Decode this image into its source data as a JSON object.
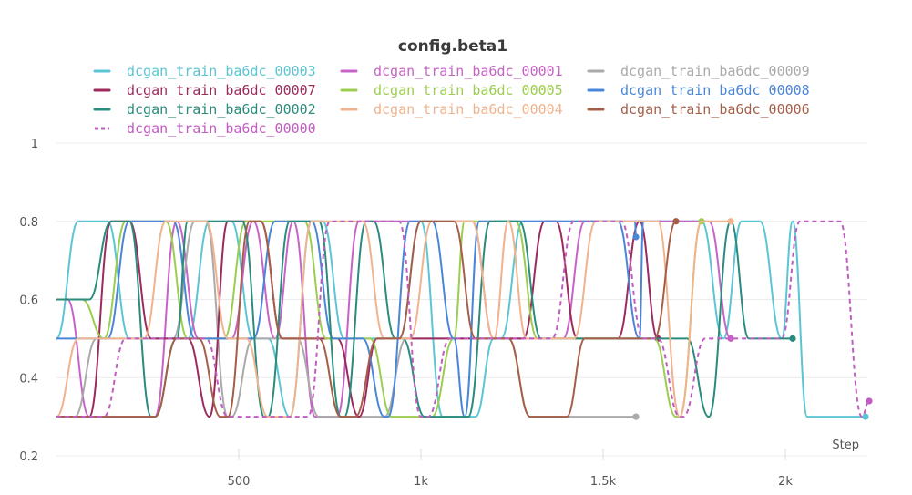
{
  "chart_data": {
    "type": "line",
    "title": "config.beta1",
    "xlabel": "Step",
    "ylabel": "",
    "xlim": [
      0,
      2230
    ],
    "ylim": [
      0.2,
      1.0
    ],
    "grid": true,
    "legend_position": "top",
    "x_ticks": [
      {
        "value": 500,
        "label": "500"
      },
      {
        "value": 1000,
        "label": "1k"
      },
      {
        "value": 1500,
        "label": "1.5k"
      },
      {
        "value": 2000,
        "label": "2k"
      }
    ],
    "y_ticks": [
      {
        "value": 0.2,
        "label": "0.2"
      },
      {
        "value": 0.4,
        "label": "0.4"
      },
      {
        "value": 0.6,
        "label": "0.6"
      },
      {
        "value": 0.8,
        "label": "0.8"
      },
      {
        "value": 1.0,
        "label": "1"
      }
    ],
    "series": [
      {
        "name": "dcgan_train_ba6dc_00003",
        "color": "#5bc5d4",
        "dashed": false,
        "steps": [
          [
            0,
            0.5
          ],
          [
            60,
            0.8
          ],
          [
            200,
            0.5
          ],
          [
            420,
            0.8
          ],
          [
            540,
            0.5
          ],
          [
            640,
            0.3
          ],
          [
            700,
            0.8
          ],
          [
            790,
            0.5
          ],
          [
            1000,
            0.8
          ],
          [
            1060,
            0.3
          ],
          [
            1150,
            0.3
          ],
          [
            1200,
            0.5
          ],
          [
            1280,
            0.8
          ],
          [
            1830,
            0.5
          ],
          [
            1880,
            0.8
          ],
          [
            1990,
            0.5
          ],
          [
            2020,
            0.8
          ],
          [
            2060,
            0.3
          ],
          [
            2220,
            0.3
          ]
        ]
      },
      {
        "name": "dcgan_train_ba6dc_00001",
        "color": "#c763c7",
        "dashed": false,
        "steps": [
          [
            0,
            0.6
          ],
          [
            90,
            0.3
          ],
          [
            330,
            0.8
          ],
          [
            390,
            0.5
          ],
          [
            540,
            0.8
          ],
          [
            600,
            0.5
          ],
          [
            650,
            0.8
          ],
          [
            710,
            0.3
          ],
          [
            830,
            0.8
          ],
          [
            1200,
            0.5
          ],
          [
            1450,
            0.8
          ],
          [
            1850,
            0.5
          ]
        ]
      },
      {
        "name": "dcgan_train_ba6dc_00009",
        "color": "#aaaaaa",
        "dashed": false,
        "steps": [
          [
            0,
            0.3
          ],
          [
            110,
            0.5
          ],
          [
            380,
            0.8
          ],
          [
            470,
            0.3
          ],
          [
            540,
            0.5
          ],
          [
            720,
            0.3
          ],
          [
            960,
            0.5
          ],
          [
            1300,
            0.3
          ],
          [
            1590,
            0.3
          ]
        ]
      },
      {
        "name": "dcgan_train_ba6dc_00007",
        "color": "#9c2a5c",
        "dashed": false,
        "steps": [
          [
            0,
            0.3
          ],
          [
            150,
            0.8
          ],
          [
            260,
            0.5
          ],
          [
            420,
            0.3
          ],
          [
            470,
            0.8
          ],
          [
            620,
            0.5
          ],
          [
            830,
            0.3
          ],
          [
            880,
            0.5
          ],
          [
            1340,
            0.8
          ],
          [
            1430,
            0.5
          ],
          [
            1600,
            0.8
          ],
          [
            1650,
            0.5
          ]
        ]
      },
      {
        "name": "dcgan_train_ba6dc_00005",
        "color": "#9ccd4e",
        "dashed": false,
        "steps": [
          [
            0,
            0.6
          ],
          [
            130,
            0.5
          ],
          [
            190,
            0.8
          ],
          [
            360,
            0.5
          ],
          [
            520,
            0.8
          ],
          [
            740,
            0.5
          ],
          [
            920,
            0.3
          ],
          [
            1090,
            0.5
          ],
          [
            1120,
            0.8
          ],
          [
            1320,
            0.5
          ],
          [
            1700,
            0.3
          ],
          [
            1770,
            0.8
          ]
        ]
      },
      {
        "name": "dcgan_train_ba6dc_00008",
        "color": "#4a86d8",
        "dashed": false,
        "steps": [
          [
            0,
            0.5
          ],
          [
            200,
            0.8
          ],
          [
            380,
            0.5
          ],
          [
            600,
            0.8
          ],
          [
            760,
            0.5
          ],
          [
            900,
            0.3
          ],
          [
            970,
            0.8
          ],
          [
            1090,
            0.5
          ],
          [
            1120,
            0.3
          ],
          [
            1160,
            0.8
          ],
          [
            1600,
            0.5
          ],
          [
            1610,
            0.8
          ],
          [
            1590,
            0.76
          ]
        ]
      },
      {
        "name": "dcgan_train_ba6dc_00002",
        "color": "#2a8c7c",
        "dashed": false,
        "steps": [
          [
            0,
            0.6
          ],
          [
            150,
            0.8
          ],
          [
            260,
            0.3
          ],
          [
            330,
            0.5
          ],
          [
            360,
            0.8
          ],
          [
            570,
            0.3
          ],
          [
            640,
            0.8
          ],
          [
            780,
            0.3
          ],
          [
            850,
            0.8
          ],
          [
            930,
            0.5
          ],
          [
            1010,
            0.3
          ],
          [
            1190,
            0.8
          ],
          [
            1330,
            0.5
          ],
          [
            1790,
            0.3
          ],
          [
            1850,
            0.8
          ],
          [
            1900,
            0.5
          ],
          [
            2020,
            0.5
          ]
        ]
      },
      {
        "name": "dcgan_train_ba6dc_00004",
        "color": "#efb48d",
        "dashed": false,
        "steps": [
          [
            0,
            0.3
          ],
          [
            60,
            0.5
          ],
          [
            300,
            0.8
          ],
          [
            470,
            0.5
          ],
          [
            580,
            0.3
          ],
          [
            700,
            0.8
          ],
          [
            900,
            0.5
          ],
          [
            1030,
            0.8
          ],
          [
            1200,
            0.5
          ],
          [
            1240,
            0.8
          ],
          [
            1290,
            0.5
          ],
          [
            1480,
            0.8
          ],
          [
            1710,
            0.3
          ],
          [
            1770,
            0.8
          ],
          [
            1850,
            0.8
          ]
        ]
      },
      {
        "name": "dcgan_train_ba6dc_00006",
        "color": "#a55f48",
        "dashed": false,
        "steps": [
          [
            0,
            0.3
          ],
          [
            330,
            0.5
          ],
          [
            450,
            0.3
          ],
          [
            530,
            0.8
          ],
          [
            620,
            0.5
          ],
          [
            780,
            0.3
          ],
          [
            880,
            0.5
          ],
          [
            1000,
            0.8
          ],
          [
            1150,
            0.5
          ],
          [
            1300,
            0.3
          ],
          [
            1400,
            0.3
          ],
          [
            1450,
            0.5
          ],
          [
            1700,
            0.8
          ]
        ]
      },
      {
        "name": "dcgan_train_ba6dc_00000",
        "color": "#c25cc2",
        "dashed": true,
        "steps": [
          [
            0,
            0.3
          ],
          [
            190,
            0.5
          ],
          [
            470,
            0.3
          ],
          [
            750,
            0.8
          ],
          [
            1000,
            0.3
          ],
          [
            1080,
            0.5
          ],
          [
            1420,
            0.8
          ],
          [
            1610,
            0.5
          ],
          [
            1710,
            0.3
          ],
          [
            1780,
            0.5
          ],
          [
            1990,
            0.5
          ],
          [
            2040,
            0.8
          ],
          [
            2210,
            0.3
          ],
          [
            2230,
            0.34
          ]
        ]
      }
    ]
  }
}
